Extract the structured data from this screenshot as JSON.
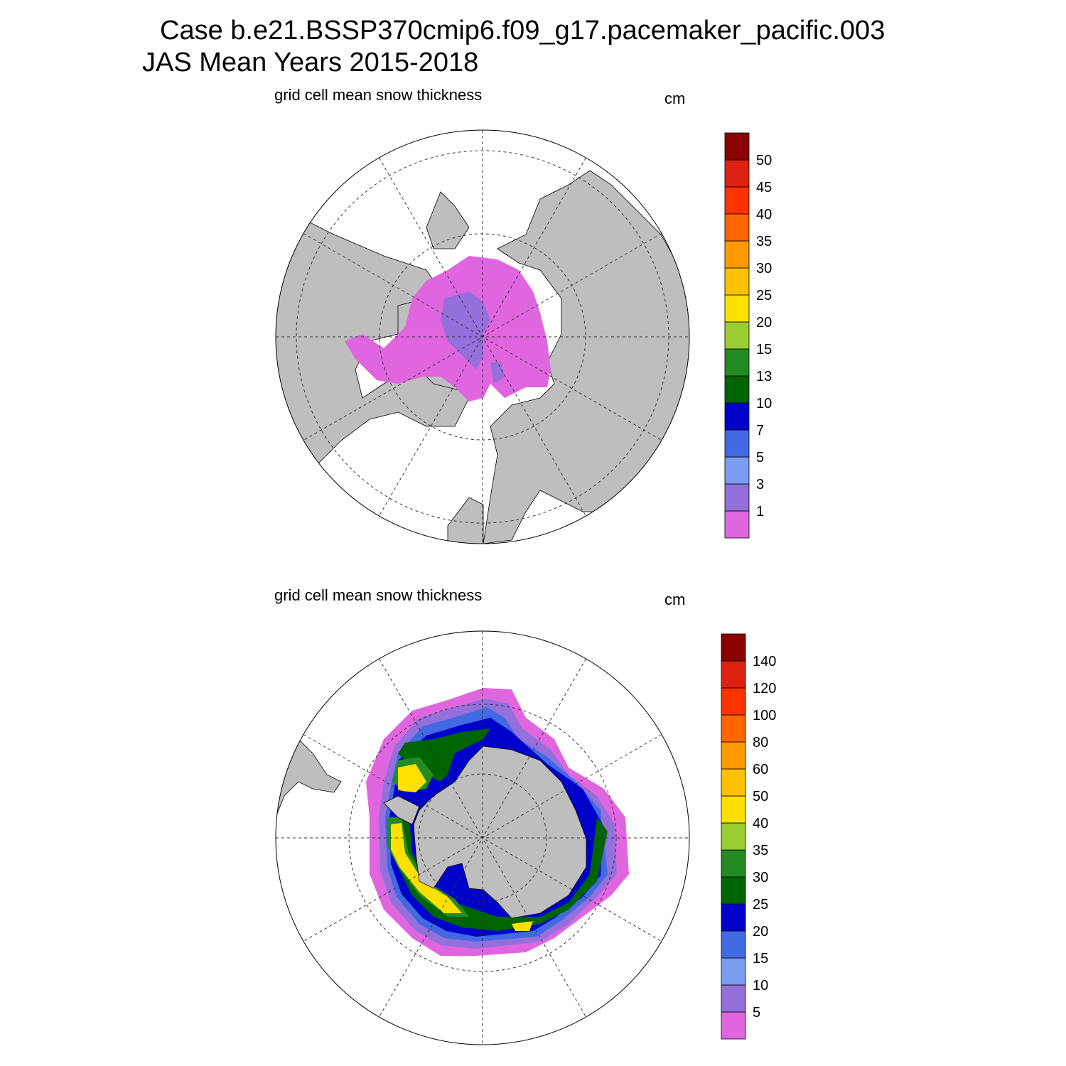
{
  "title": [
    "Case b.e21.BSSP370cmip6.f09_g17.pacemaker_pacific.003",
    "JAS Mean   Years 2015-2018"
  ],
  "panels": [
    {
      "subtitle": "grid cell mean snow thickness",
      "units": "cm",
      "levels": [
        1,
        3,
        5,
        7,
        10,
        13,
        15,
        20,
        25,
        30,
        35,
        40,
        45,
        50
      ],
      "colors": [
        "#e066e0",
        "#9370db",
        "#7b9cf0",
        "#4169e1",
        "#0000cd",
        "#006400",
        "#228b22",
        "#9acd32",
        "#ffe000",
        "#ffc000",
        "#ff9900",
        "#ff6600",
        "#ff3300",
        "#dd2211",
        "#8b0000"
      ]
    },
    {
      "subtitle": "grid cell mean snow thickness",
      "units": "cm",
      "levels": [
        5,
        10,
        15,
        20,
        25,
        30,
        35,
        40,
        50,
        60,
        80,
        100,
        120,
        140
      ],
      "colors": [
        "#e066e0",
        "#9370db",
        "#7b9cf0",
        "#4169e1",
        "#0000cd",
        "#006400",
        "#228b22",
        "#9acd32",
        "#ffe000",
        "#ffc000",
        "#ff9900",
        "#ff6600",
        "#ff3300",
        "#dd2211",
        "#8b0000"
      ]
    }
  ]
}
